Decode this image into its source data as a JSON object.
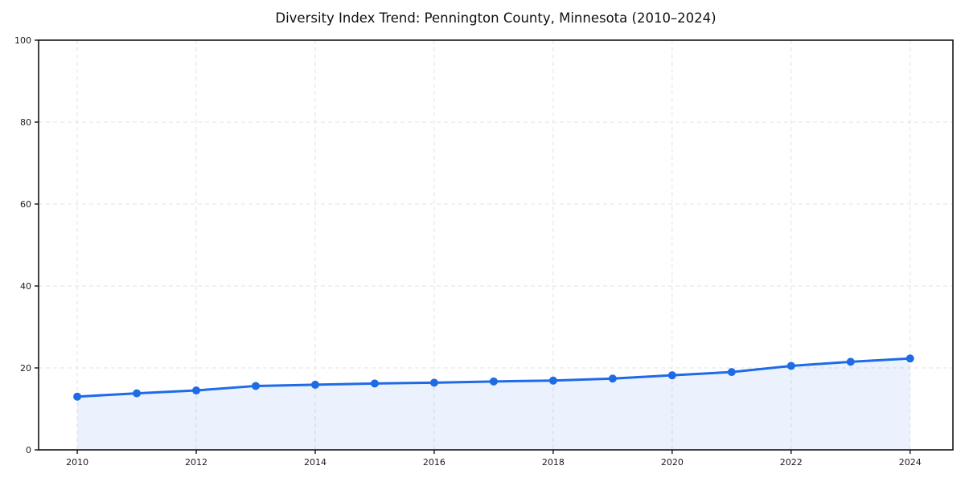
{
  "chart_data": {
    "type": "line",
    "title": "Diversity Index Trend: Pennington County, Minnesota (2010–2024)",
    "xlabel": "",
    "ylabel": "",
    "x": [
      2010,
      2011,
      2012,
      2013,
      2014,
      2015,
      2016,
      2017,
      2018,
      2019,
      2020,
      2021,
      2022,
      2023,
      2024
    ],
    "series": [
      {
        "name": "Diversity Index",
        "values": [
          13.0,
          13.8,
          14.5,
          15.6,
          15.9,
          16.2,
          16.4,
          16.7,
          16.9,
          17.4,
          18.2,
          19.0,
          20.5,
          21.5,
          22.3
        ]
      }
    ],
    "x_tick_labels": [
      "2010",
      "2012",
      "2014",
      "2016",
      "2018",
      "2020",
      "2022",
      "2024"
    ],
    "x_ticks": [
      2010,
      2012,
      2014,
      2016,
      2018,
      2020,
      2022,
      2024
    ],
    "y_ticks": [
      0,
      20,
      40,
      60,
      80,
      100
    ],
    "xlim": [
      2009.35,
      2024.72
    ],
    "ylim": [
      0,
      100
    ],
    "grid": "dashed",
    "legend_position": "none",
    "area_fill": true,
    "markers": true,
    "colors": {
      "line": "#1f6be6",
      "marker": "#1f6be6",
      "area": "rgba(31,107,230,0.09)",
      "grid": "#e3e3e3",
      "spine": "#141414",
      "background": "#ffffff",
      "title_text": "#111111",
      "tick_text": "#1a1a1a"
    }
  }
}
